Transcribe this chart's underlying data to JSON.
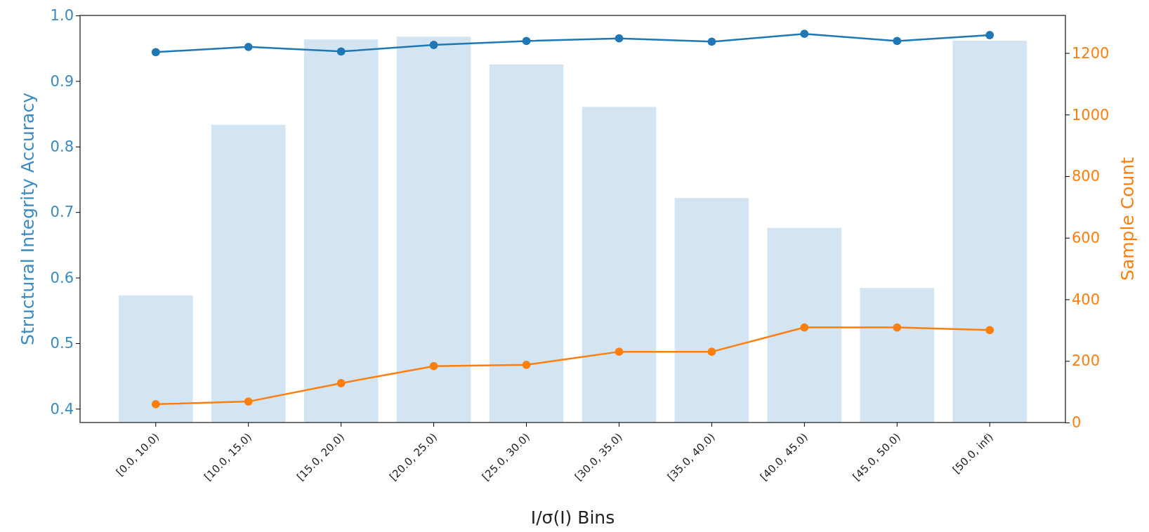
{
  "chart_data": {
    "type": "line",
    "xlabel": "I/σ(I) Bins",
    "ylabel": "Structural Integrity Accuracy",
    "y2label": "Sample Count",
    "categories": [
      "[0.0, 10.0)",
      "[10.0, 15.0)",
      "[15.0, 20.0)",
      "[20.0, 25.0)",
      "[25.0, 30.0)",
      "[30.0, 35.0)",
      "[35.0, 40.0)",
      "[40.0, 45.0)",
      "[45.0, 50.0)",
      "[50.0, inf)"
    ],
    "series": [
      {
        "type": "bar",
        "axis": "y2",
        "color": "#d3e5f2",
        "values": [
          413,
          967,
          1244,
          1253,
          1163,
          1025,
          729,
          632,
          437,
          1240
        ]
      },
      {
        "color": "#1f77b4",
        "values": [
          0.944,
          0.952,
          0.945,
          0.955,
          0.961,
          0.965,
          0.96,
          0.972,
          0.961,
          0.97
        ]
      },
      {
        "color": "#ff7f0e",
        "values": [
          0.407,
          0.411,
          0.439,
          0.465,
          0.467,
          0.487,
          0.487,
          0.524,
          0.524,
          0.52
        ]
      }
    ],
    "ylim": [
      0.379,
      1.0
    ],
    "yticks": [
      0.4,
      0.5,
      0.6,
      0.7,
      0.8,
      0.9,
      {
        "value": 1.0,
        "label": "1.0"
      }
    ],
    "y2lim": [
      0,
      1322
    ],
    "y2ticks": [
      0,
      200,
      400,
      600,
      800,
      1000,
      1200
    ],
    "marker": "circle",
    "line_style": "solid",
    "grid": false
  }
}
